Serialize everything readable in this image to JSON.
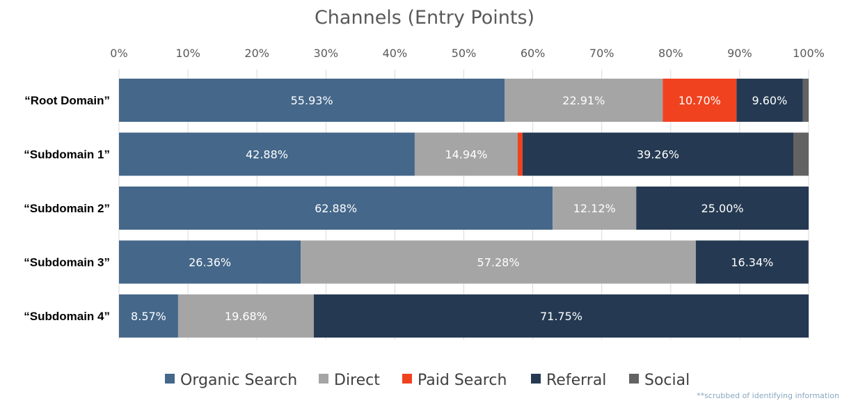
{
  "chart_data": {
    "type": "bar",
    "orientation": "horizontal",
    "stacked": "percent",
    "title": "Channels (Entry Points)",
    "xlabel": "",
    "ylabel": "",
    "xlim": [
      0,
      100
    ],
    "x_ticks": [
      "0%",
      "10%",
      "20%",
      "30%",
      "40%",
      "50%",
      "60%",
      "70%",
      "80%",
      "90%",
      "100%"
    ],
    "grid": true,
    "legend_position": "bottom",
    "categories": [
      "“Root Domain”",
      "“Subdomain 1”",
      "“Subdomain 2”",
      "“Subdomain 3”",
      "“Subdomain 4”"
    ],
    "series": [
      {
        "name": "Organic Search",
        "color": "#44678a",
        "values": [
          55.93,
          42.88,
          62.88,
          26.36,
          8.57
        ],
        "labels": [
          "55.93%",
          "42.88%",
          "62.88%",
          "26.36%",
          "8.57%"
        ]
      },
      {
        "name": "Direct",
        "color": "#a5a5a5",
        "values": [
          22.91,
          14.94,
          12.12,
          57.28,
          19.68
        ],
        "labels": [
          "22.91%",
          "14.94%",
          "12.12%",
          "57.28%",
          "19.68%"
        ]
      },
      {
        "name": "Paid Search",
        "color": "#f0421f",
        "values": [
          10.7,
          0.7,
          0,
          0,
          0
        ],
        "labels": [
          "10.70%",
          "",
          "",
          "",
          ""
        ]
      },
      {
        "name": "Referral",
        "color": "#253a52",
        "values": [
          9.6,
          39.26,
          25.0,
          16.34,
          71.75
        ],
        "labels": [
          "9.60%",
          "39.26%",
          "25.00%",
          "16.34%",
          "71.75%"
        ]
      },
      {
        "name": "Social",
        "color": "#636363",
        "values": [
          0.86,
          2.22,
          0,
          0,
          0
        ],
        "labels": [
          "",
          "",
          "",
          "",
          ""
        ]
      }
    ]
  },
  "footnote": "**scrubbed of identifying information"
}
